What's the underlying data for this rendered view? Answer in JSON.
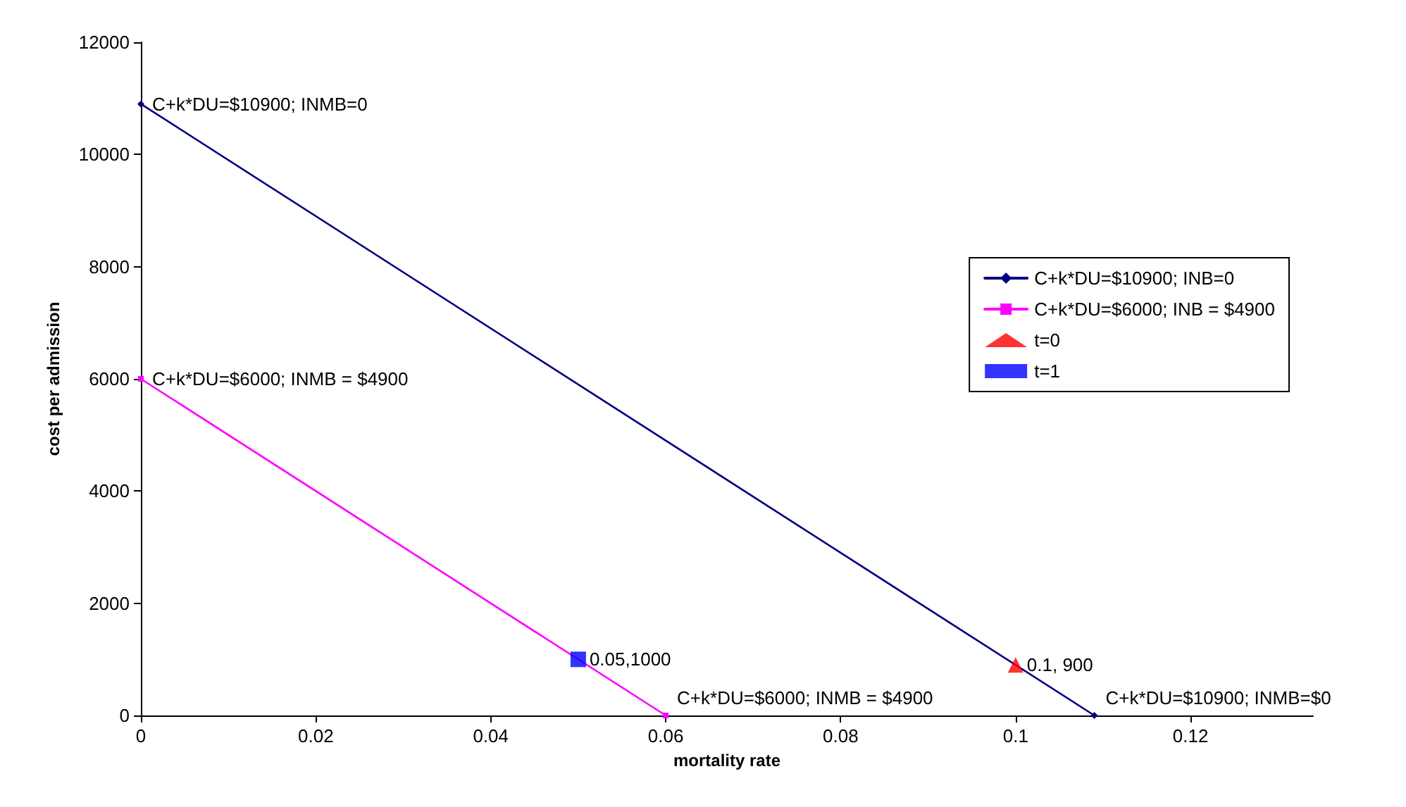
{
  "chart_data": {
    "type": "line",
    "xlabel": "mortality rate",
    "ylabel": "cost per admission",
    "series": [
      {
        "name": "C+k*DU=$10900; INB=0",
        "color": "#000080",
        "x": [
          0,
          0.109
        ],
        "values": [
          10900,
          0
        ],
        "marker": "diamond"
      },
      {
        "name": "C+k*DU=$6000; INB = $4900",
        "color": "#ff00ff",
        "x": [
          0,
          0.06
        ],
        "values": [
          6000,
          0
        ],
        "marker": "square"
      },
      {
        "name": "t=0",
        "type": "scatter",
        "color": "#ff0000",
        "x": [
          0.1
        ],
        "values": [
          900
        ],
        "marker": "triangle"
      },
      {
        "name": "t=1",
        "type": "scatter",
        "color": "#0000ff",
        "x": [
          0.05
        ],
        "values": [
          1000
        ],
        "marker": "square"
      }
    ],
    "annotations": [
      {
        "text": "C+k*DU=$10900; INMB=0",
        "x": 0,
        "y": 10900
      },
      {
        "text": "C+k*DU=$6000; INMB = $4900",
        "x": 0,
        "y": 6000
      },
      {
        "text": "0.05,1000",
        "x": 0.05,
        "y": 1000
      },
      {
        "text": "0.1, 900",
        "x": 0.1,
        "y": 900
      },
      {
        "text": "C+k*DU=$6000; INMB = $4900",
        "x": 0.06,
        "y": 0
      },
      {
        "text": "C+k*DU=$10900; INMB=$0",
        "x": 0.109,
        "y": 0
      }
    ],
    "xlim": [
      0,
      0.134
    ],
    "xticks": [
      0,
      0.02,
      0.04,
      0.06,
      0.08,
      0.1,
      0.12
    ],
    "ylim": [
      0,
      12000
    ],
    "yticks": [
      0,
      2000,
      4000,
      6000,
      8000,
      10000,
      12000
    ],
    "grid": false,
    "legend": "right",
    "line_style": "solid"
  }
}
